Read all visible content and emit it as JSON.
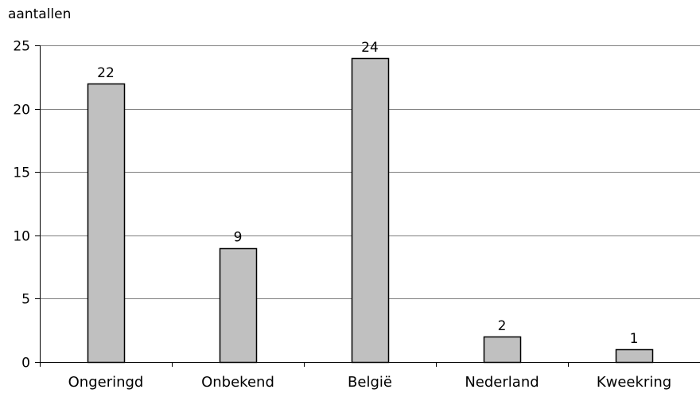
{
  "chart_data": {
    "type": "bar",
    "ylabel": "aantallen",
    "categories": [
      "Ongeringd",
      "Onbekend",
      "België",
      "Nederland",
      "Kweekring"
    ],
    "values": [
      22,
      9,
      24,
      2,
      1
    ],
    "ylim": [
      0,
      25
    ],
    "yticks": [
      0,
      5,
      10,
      15,
      20,
      25
    ],
    "grid": true,
    "bar_color": "#c0c0c0",
    "bar_edge_color": "#000000",
    "gridline_color": "#808080"
  }
}
